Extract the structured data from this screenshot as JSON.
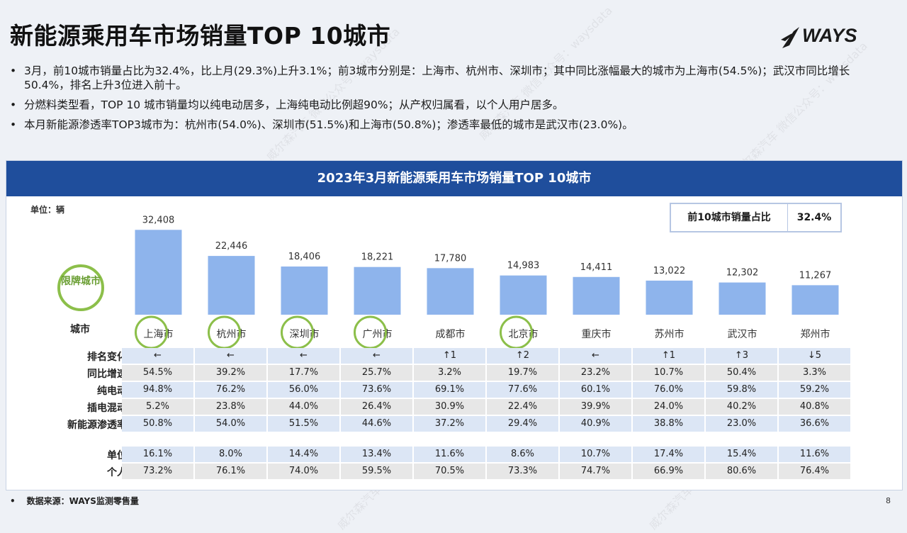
{
  "slide": {
    "title": "新能源乘用车市场销量TOP 10城市",
    "logo_text": "WAYS",
    "bullets": [
      "3月，前10城市销量占比为32.4%，比上月(29.3%)上升3.1%；前3城市分别是：上海市、杭州市、深圳市；其中同比涨幅最大的城市为上海市(54.5%)；武汉市同比增长50.4%，排名上升3位进入前十。",
      "分燃料类型看，TOP 10 城市销量均以纯电动居多，上海纯电动比例超90%；从产权归属看，以个人用户居多。",
      "本月新能源渗透率TOP3城市为：杭州市(54.0%)、深圳市(51.5%)和上海市(50.8%)；渗透率最低的城市是武汉市(23.0%)。"
    ],
    "bullet_marker": "•",
    "footer": "数据来源：WAYS监测零售量",
    "footer_marker": "•",
    "page_number": "8",
    "watermark_text": "威尔森汽车 微信公众号：waysdata"
  },
  "panel": {
    "title": "2023年3月新能源乘用车市场销量TOP 10城市",
    "unit_label": "单位：辆",
    "kpi": {
      "label": "前10城市销量占比",
      "value": "32.4%"
    },
    "restricted_badge": "限牌城市",
    "colors": {
      "header": "#1f4e9c",
      "bar": "#8eb4ec",
      "ring": "#8cbf4a"
    }
  },
  "chart_data": {
    "type": "bar",
    "categories": [
      "上海市",
      "杭州市",
      "深圳市",
      "广州市",
      "成都市",
      "北京市",
      "重庆市",
      "苏州市",
      "武汉市",
      "郑州市"
    ],
    "values": [
      32408,
      22446,
      18406,
      18221,
      17780,
      14983,
      14411,
      13022,
      12302,
      11267
    ],
    "value_labels": [
      "32,408",
      "22,446",
      "18,406",
      "18,221",
      "17,780",
      "14,983",
      "14,411",
      "13,022",
      "12,302",
      "11,267"
    ],
    "restricted": [
      true,
      true,
      true,
      true,
      false,
      true,
      false,
      false,
      false,
      false
    ],
    "ylim": [
      0,
      34000
    ],
    "xlabel": "城市",
    "ylabel": "单位：辆"
  },
  "table": {
    "rows_group1": [
      {
        "label": "排名变化",
        "style": "blue",
        "values": [
          "←",
          "←",
          "←",
          "←",
          "↑1",
          "↑2",
          "←",
          "↑1",
          "↑3",
          "↓5"
        ]
      },
      {
        "label": "同比增速",
        "style": "gray",
        "values": [
          "54.5%",
          "39.2%",
          "17.7%",
          "25.7%",
          "3.2%",
          "19.7%",
          "23.2%",
          "10.7%",
          "50.4%",
          "3.3%"
        ]
      },
      {
        "label": "纯电动",
        "style": "blue",
        "values": [
          "94.8%",
          "76.2%",
          "56.0%",
          "73.6%",
          "69.1%",
          "77.6%",
          "60.1%",
          "76.0%",
          "59.8%",
          "59.2%"
        ]
      },
      {
        "label": "插电混动",
        "style": "gray",
        "values": [
          "5.2%",
          "23.8%",
          "44.0%",
          "26.4%",
          "30.9%",
          "22.4%",
          "39.9%",
          "24.0%",
          "40.2%",
          "40.8%"
        ]
      },
      {
        "label": "新能源渗透率",
        "style": "blue",
        "values": [
          "50.8%",
          "54.0%",
          "51.5%",
          "44.6%",
          "37.2%",
          "29.4%",
          "40.9%",
          "38.8%",
          "23.0%",
          "36.6%"
        ]
      }
    ],
    "rows_group2": [
      {
        "label": "单位",
        "style": "blue",
        "values": [
          "16.1%",
          "8.0%",
          "14.4%",
          "13.4%",
          "11.6%",
          "8.6%",
          "10.7%",
          "17.4%",
          "15.4%",
          "11.6%"
        ]
      },
      {
        "label": "个人",
        "style": "gray",
        "values": [
          "73.2%",
          "76.1%",
          "74.0%",
          "59.5%",
          "70.5%",
          "73.3%",
          "74.7%",
          "66.9%",
          "80.6%",
          "76.4%"
        ]
      }
    ]
  }
}
